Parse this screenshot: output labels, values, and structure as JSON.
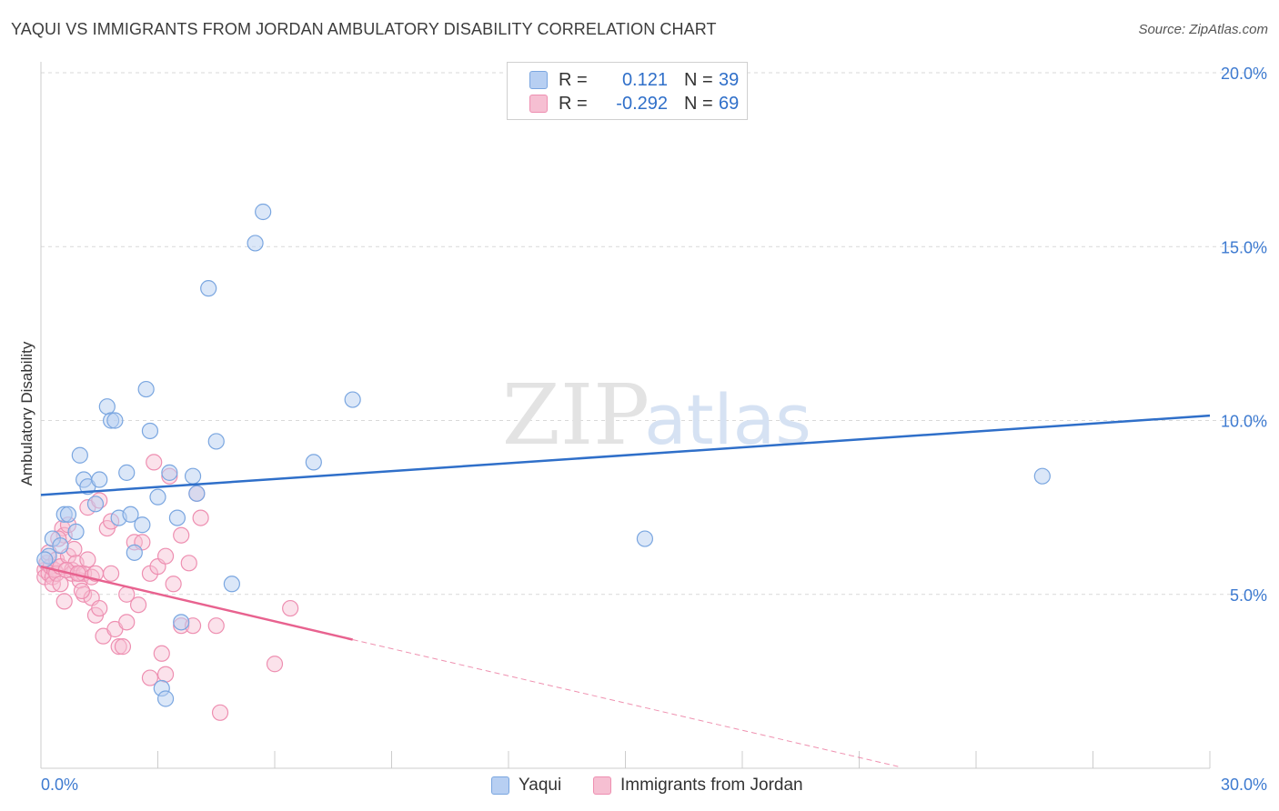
{
  "title": "YAQUI VS IMMIGRANTS FROM JORDAN AMBULATORY DISABILITY CORRELATION CHART",
  "source": "Source: ZipAtlas.com",
  "watermark": {
    "zip": "ZIP",
    "atlas": "atlas"
  },
  "legend": {
    "rows": [
      {
        "r_label": "R =",
        "r_value": "0.121",
        "n_label": "N =",
        "n_value": "39"
      },
      {
        "r_label": "R =",
        "r_value": "-0.292",
        "n_label": "N =",
        "n_value": "69"
      }
    ]
  },
  "bottom_legend": {
    "series1": "Yaqui",
    "series2": "Immigrants from Jordan"
  },
  "colors": {
    "blue_fill": "#b7cff2",
    "blue_stroke": "#7aa6e0",
    "blue_line": "#2f6fc9",
    "pink_fill": "#f6bfd2",
    "pink_stroke": "#ee8fb1",
    "pink_line": "#e8628f",
    "axis_text": "#3d7ad0",
    "grid": "#d9d9d9"
  },
  "chart_data": {
    "type": "scatter",
    "title": "YAQUI VS IMMIGRANTS FROM JORDAN AMBULATORY DISABILITY CORRELATION CHART",
    "xlabel": "",
    "ylabel": "Ambulatory Disability",
    "xlim": [
      0,
      30
    ],
    "ylim": [
      0,
      20
    ],
    "x_tick_labels": [
      "0.0%",
      "30.0%"
    ],
    "y_ticks": [
      5,
      10,
      15,
      20
    ],
    "y_tick_labels": [
      "5.0%",
      "10.0%",
      "15.0%",
      "20.0%"
    ],
    "series": [
      {
        "name": "Yaqui",
        "r": 0.121,
        "n": 39,
        "trend": {
          "x": [
            0,
            30
          ],
          "y": [
            7.86,
            10.14
          ]
        },
        "points": [
          {
            "x": 0.2,
            "y": 6.1
          },
          {
            "x": 0.3,
            "y": 6.6
          },
          {
            "x": 0.5,
            "y": 6.4
          },
          {
            "x": 0.6,
            "y": 7.3
          },
          {
            "x": 0.7,
            "y": 7.3
          },
          {
            "x": 0.9,
            "y": 6.8
          },
          {
            "x": 1.0,
            "y": 9.0
          },
          {
            "x": 1.1,
            "y": 8.3
          },
          {
            "x": 1.2,
            "y": 8.1
          },
          {
            "x": 1.4,
            "y": 7.6
          },
          {
            "x": 1.5,
            "y": 8.3
          },
          {
            "x": 1.7,
            "y": 10.4
          },
          {
            "x": 1.8,
            "y": 10.0
          },
          {
            "x": 1.9,
            "y": 10.0
          },
          {
            "x": 2.0,
            "y": 7.2
          },
          {
            "x": 2.2,
            "y": 8.5
          },
          {
            "x": 2.3,
            "y": 7.3
          },
          {
            "x": 2.4,
            "y": 6.2
          },
          {
            "x": 2.6,
            "y": 7.0
          },
          {
            "x": 2.7,
            "y": 10.9
          },
          {
            "x": 2.8,
            "y": 9.7
          },
          {
            "x": 3.0,
            "y": 7.8
          },
          {
            "x": 3.1,
            "y": 2.3
          },
          {
            "x": 3.2,
            "y": 2.0
          },
          {
            "x": 3.3,
            "y": 8.5
          },
          {
            "x": 3.5,
            "y": 7.2
          },
          {
            "x": 3.6,
            "y": 4.2
          },
          {
            "x": 3.9,
            "y": 8.4
          },
          {
            "x": 4.0,
            "y": 7.9
          },
          {
            "x": 4.3,
            "y": 13.8
          },
          {
            "x": 4.5,
            "y": 9.4
          },
          {
            "x": 4.9,
            "y": 5.3
          },
          {
            "x": 5.5,
            "y": 15.1
          },
          {
            "x": 5.7,
            "y": 16.0
          },
          {
            "x": 7.0,
            "y": 8.8
          },
          {
            "x": 8.0,
            "y": 10.6
          },
          {
            "x": 15.5,
            "y": 6.6
          },
          {
            "x": 25.7,
            "y": 8.4
          },
          {
            "x": 0.1,
            "y": 6.0
          }
        ]
      },
      {
        "name": "Immigrants from Jordan",
        "r": -0.292,
        "n": 69,
        "trend": {
          "x": [
            0,
            8
          ],
          "y": [
            5.8,
            3.7
          ]
        },
        "trend_dashed": {
          "x": [
            8,
            22
          ],
          "y": [
            3.7,
            0.05
          ]
        },
        "points": [
          {
            "x": 0.1,
            "y": 5.7
          },
          {
            "x": 0.1,
            "y": 5.5
          },
          {
            "x": 0.15,
            "y": 5.9
          },
          {
            "x": 0.2,
            "y": 6.2
          },
          {
            "x": 0.2,
            "y": 5.6
          },
          {
            "x": 0.25,
            "y": 5.8
          },
          {
            "x": 0.3,
            "y": 5.5
          },
          {
            "x": 0.3,
            "y": 5.3
          },
          {
            "x": 0.35,
            "y": 5.7
          },
          {
            "x": 0.4,
            "y": 6.0
          },
          {
            "x": 0.4,
            "y": 5.6
          },
          {
            "x": 0.5,
            "y": 5.8
          },
          {
            "x": 0.5,
            "y": 5.3
          },
          {
            "x": 0.55,
            "y": 6.9
          },
          {
            "x": 0.6,
            "y": 6.7
          },
          {
            "x": 0.6,
            "y": 4.8
          },
          {
            "x": 0.7,
            "y": 7.0
          },
          {
            "x": 0.7,
            "y": 6.1
          },
          {
            "x": 0.8,
            "y": 5.7
          },
          {
            "x": 0.8,
            "y": 5.6
          },
          {
            "x": 0.85,
            "y": 6.3
          },
          {
            "x": 0.9,
            "y": 5.9
          },
          {
            "x": 1.0,
            "y": 5.6
          },
          {
            "x": 1.0,
            "y": 5.4
          },
          {
            "x": 1.1,
            "y": 5.0
          },
          {
            "x": 1.1,
            "y": 5.6
          },
          {
            "x": 1.2,
            "y": 6.0
          },
          {
            "x": 1.2,
            "y": 7.5
          },
          {
            "x": 1.3,
            "y": 5.5
          },
          {
            "x": 1.3,
            "y": 4.9
          },
          {
            "x": 1.4,
            "y": 5.6
          },
          {
            "x": 1.4,
            "y": 4.4
          },
          {
            "x": 1.5,
            "y": 4.6
          },
          {
            "x": 1.5,
            "y": 7.7
          },
          {
            "x": 1.6,
            "y": 3.8
          },
          {
            "x": 1.7,
            "y": 6.9
          },
          {
            "x": 1.8,
            "y": 7.1
          },
          {
            "x": 1.8,
            "y": 5.6
          },
          {
            "x": 1.9,
            "y": 4.0
          },
          {
            "x": 2.0,
            "y": 3.5
          },
          {
            "x": 2.1,
            "y": 3.5
          },
          {
            "x": 2.2,
            "y": 4.2
          },
          {
            "x": 2.2,
            "y": 5.0
          },
          {
            "x": 2.4,
            "y": 6.5
          },
          {
            "x": 2.5,
            "y": 4.7
          },
          {
            "x": 2.6,
            "y": 6.5
          },
          {
            "x": 2.8,
            "y": 5.6
          },
          {
            "x": 2.8,
            "y": 2.6
          },
          {
            "x": 2.9,
            "y": 8.8
          },
          {
            "x": 3.0,
            "y": 5.8
          },
          {
            "x": 3.1,
            "y": 3.3
          },
          {
            "x": 3.2,
            "y": 2.7
          },
          {
            "x": 3.2,
            "y": 6.1
          },
          {
            "x": 3.3,
            "y": 8.4
          },
          {
            "x": 3.4,
            "y": 5.3
          },
          {
            "x": 3.6,
            "y": 4.1
          },
          {
            "x": 3.6,
            "y": 6.7
          },
          {
            "x": 3.8,
            "y": 5.9
          },
          {
            "x": 3.9,
            "y": 4.1
          },
          {
            "x": 4.0,
            "y": 7.9
          },
          {
            "x": 4.1,
            "y": 7.2
          },
          {
            "x": 4.5,
            "y": 4.1
          },
          {
            "x": 4.6,
            "y": 1.6
          },
          {
            "x": 6.0,
            "y": 3.0
          },
          {
            "x": 6.4,
            "y": 4.6
          },
          {
            "x": 0.45,
            "y": 6.6
          },
          {
            "x": 0.65,
            "y": 5.7
          },
          {
            "x": 1.05,
            "y": 5.1
          },
          {
            "x": 0.95,
            "y": 5.6
          }
        ]
      }
    ]
  }
}
